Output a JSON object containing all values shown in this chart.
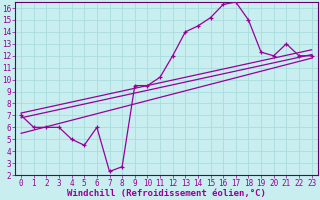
{
  "xlabel": "Windchill (Refroidissement éolien,°C)",
  "bg_color": "#c8eef0",
  "grid_color": "#aadddd",
  "line_color": "#990099",
  "spine_color": "#660066",
  "xlim": [
    -0.5,
    23.5
  ],
  "ylim": [
    2,
    16.5
  ],
  "xticks": [
    0,
    1,
    2,
    3,
    4,
    5,
    6,
    7,
    8,
    9,
    10,
    11,
    12,
    13,
    14,
    15,
    16,
    17,
    18,
    19,
    20,
    21,
    22,
    23
  ],
  "yticks": [
    2,
    3,
    4,
    5,
    6,
    7,
    8,
    9,
    10,
    11,
    12,
    13,
    14,
    15,
    16
  ],
  "line1_x": [
    0,
    1,
    2,
    3,
    4,
    5,
    6,
    7,
    8,
    9,
    10,
    11,
    12,
    13,
    14,
    15,
    16,
    17,
    18,
    19,
    20,
    21,
    22,
    23
  ],
  "line1_y": [
    7,
    6,
    6,
    6,
    5,
    4.5,
    6,
    2.3,
    2.7,
    9.5,
    9.5,
    10.2,
    12,
    14,
    14.5,
    15.2,
    16.3,
    16.5,
    15,
    12.3,
    12,
    13,
    12,
    12
  ],
  "line2_x": [
    0,
    23
  ],
  "line2_y": [
    6.8,
    12.1
  ],
  "line3_x": [
    0,
    23
  ],
  "line3_y": [
    5.5,
    11.8
  ],
  "line4_x": [
    0,
    23
  ],
  "line4_y": [
    7.2,
    12.5
  ],
  "tick_fontsize": 5.5,
  "xlabel_fontsize": 6.5
}
